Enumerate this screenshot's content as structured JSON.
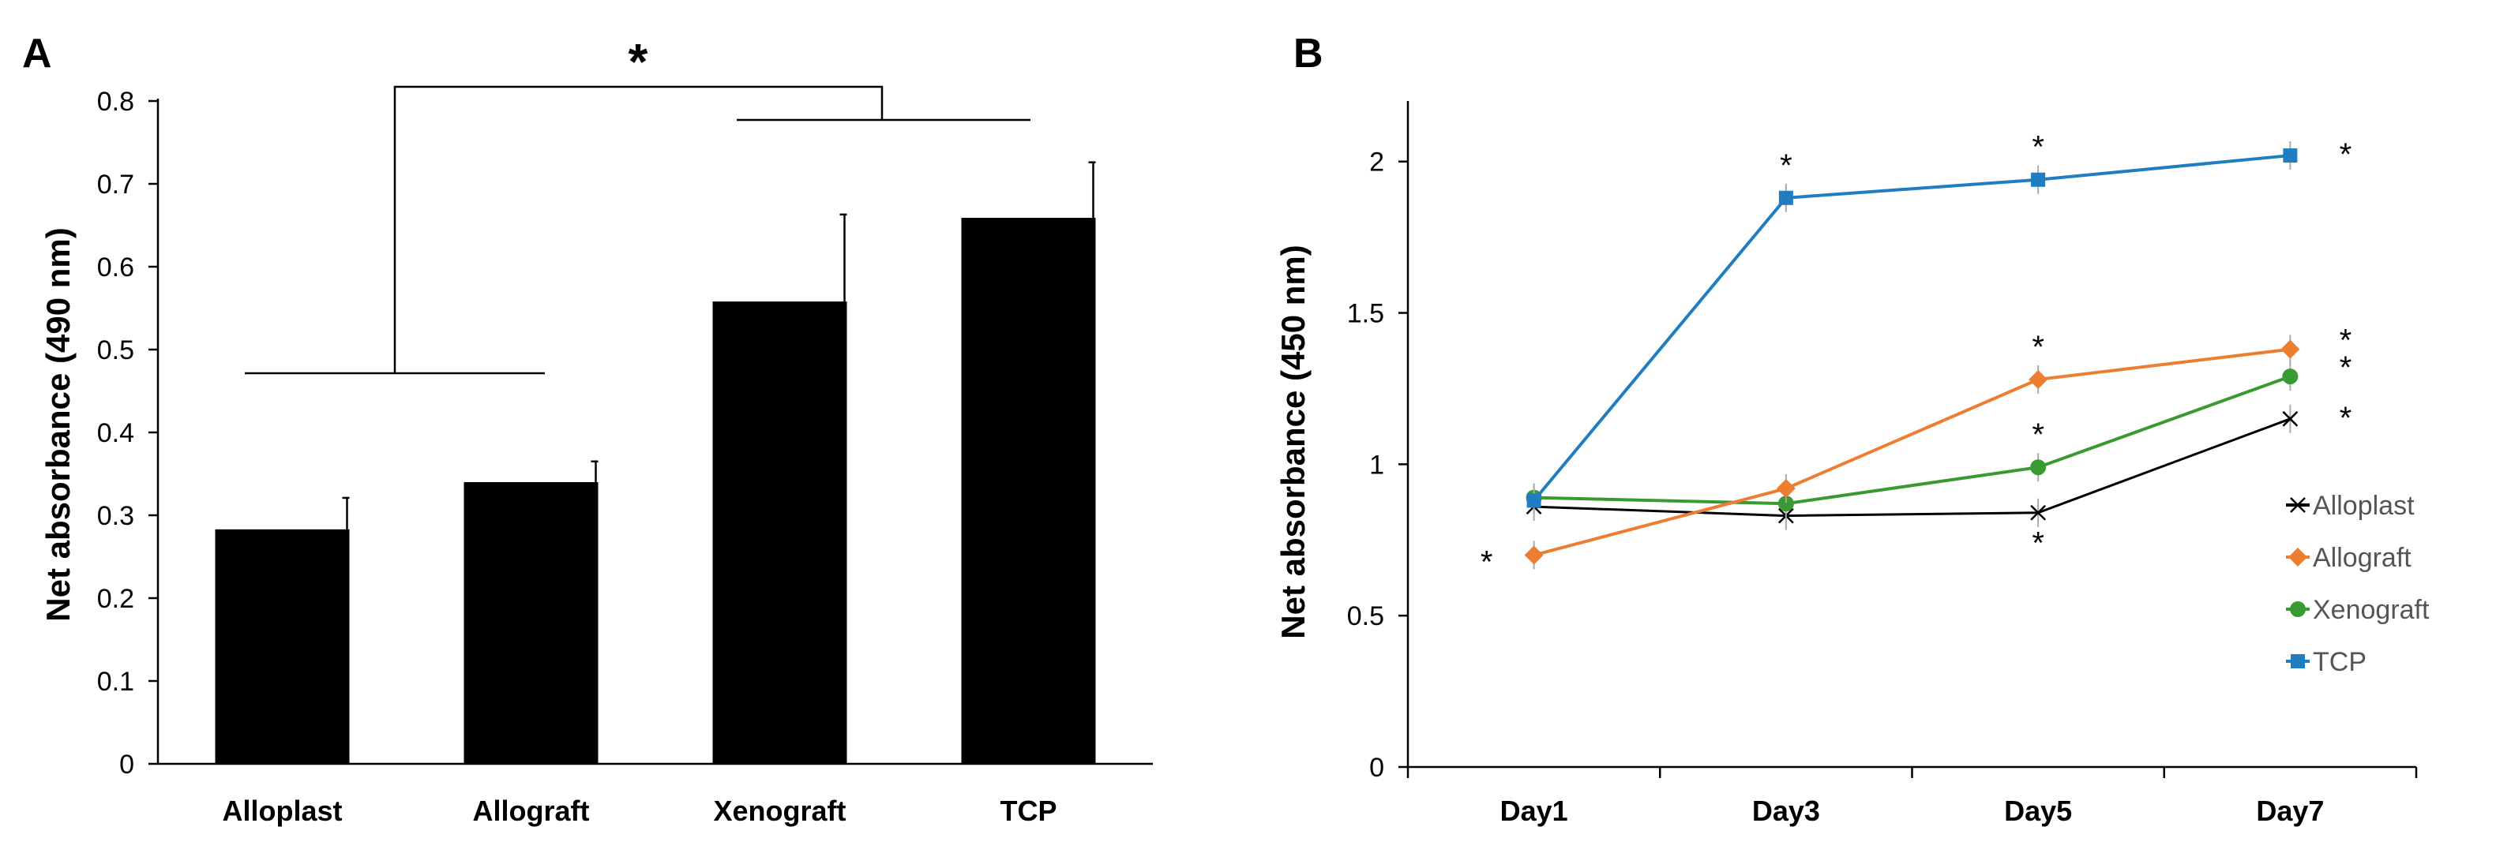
{
  "panels": {
    "a": "A",
    "b": "B"
  },
  "chart_data": [
    {
      "type": "bar",
      "title": "",
      "xlabel": "",
      "ylabel": "Net absorbance (490 nm)",
      "ylim": [
        0,
        0.8
      ],
      "yticks": [
        "0",
        "0.1",
        "0.2",
        "0.3",
        "0.4",
        "0.5",
        "0.6",
        "0.7",
        "0.8"
      ],
      "categories": [
        "Alloplast",
        "Allograft",
        "Xenograft",
        "TCP"
      ],
      "values": [
        0.283,
        0.34,
        0.558,
        0.659
      ],
      "errors": [
        0.038,
        0.025,
        0.105,
        0.067
      ],
      "bar_color": "#000000",
      "significance": "*"
    },
    {
      "type": "line",
      "title": "",
      "xlabel": "",
      "ylabel": "Net absorbance (450 nm)",
      "ylim": [
        0,
        2.2
      ],
      "yticks": [
        "0",
        "0.5",
        "1",
        "1.5",
        "2"
      ],
      "x": [
        "Day1",
        "Day3",
        "Day5",
        "Day7"
      ],
      "series": [
        {
          "name": "Alloplast",
          "color": "#000000",
          "marker": "x",
          "values": [
            0.86,
            0.83,
            0.84,
            1.15
          ]
        },
        {
          "name": "Allograft",
          "color": "#ED7D31",
          "marker": "diamond",
          "values": [
            0.7,
            0.92,
            1.28,
            1.38
          ]
        },
        {
          "name": "Xenograft",
          "color": "#3A9A32",
          "marker": "circle",
          "values": [
            0.89,
            0.87,
            0.99,
            1.29
          ]
        },
        {
          "name": "TCP",
          "color": "#1F7DC1",
          "marker": "square",
          "values": [
            0.88,
            1.88,
            1.94,
            2.02
          ]
        }
      ],
      "legend_position": "right",
      "significance": "*"
    }
  ]
}
